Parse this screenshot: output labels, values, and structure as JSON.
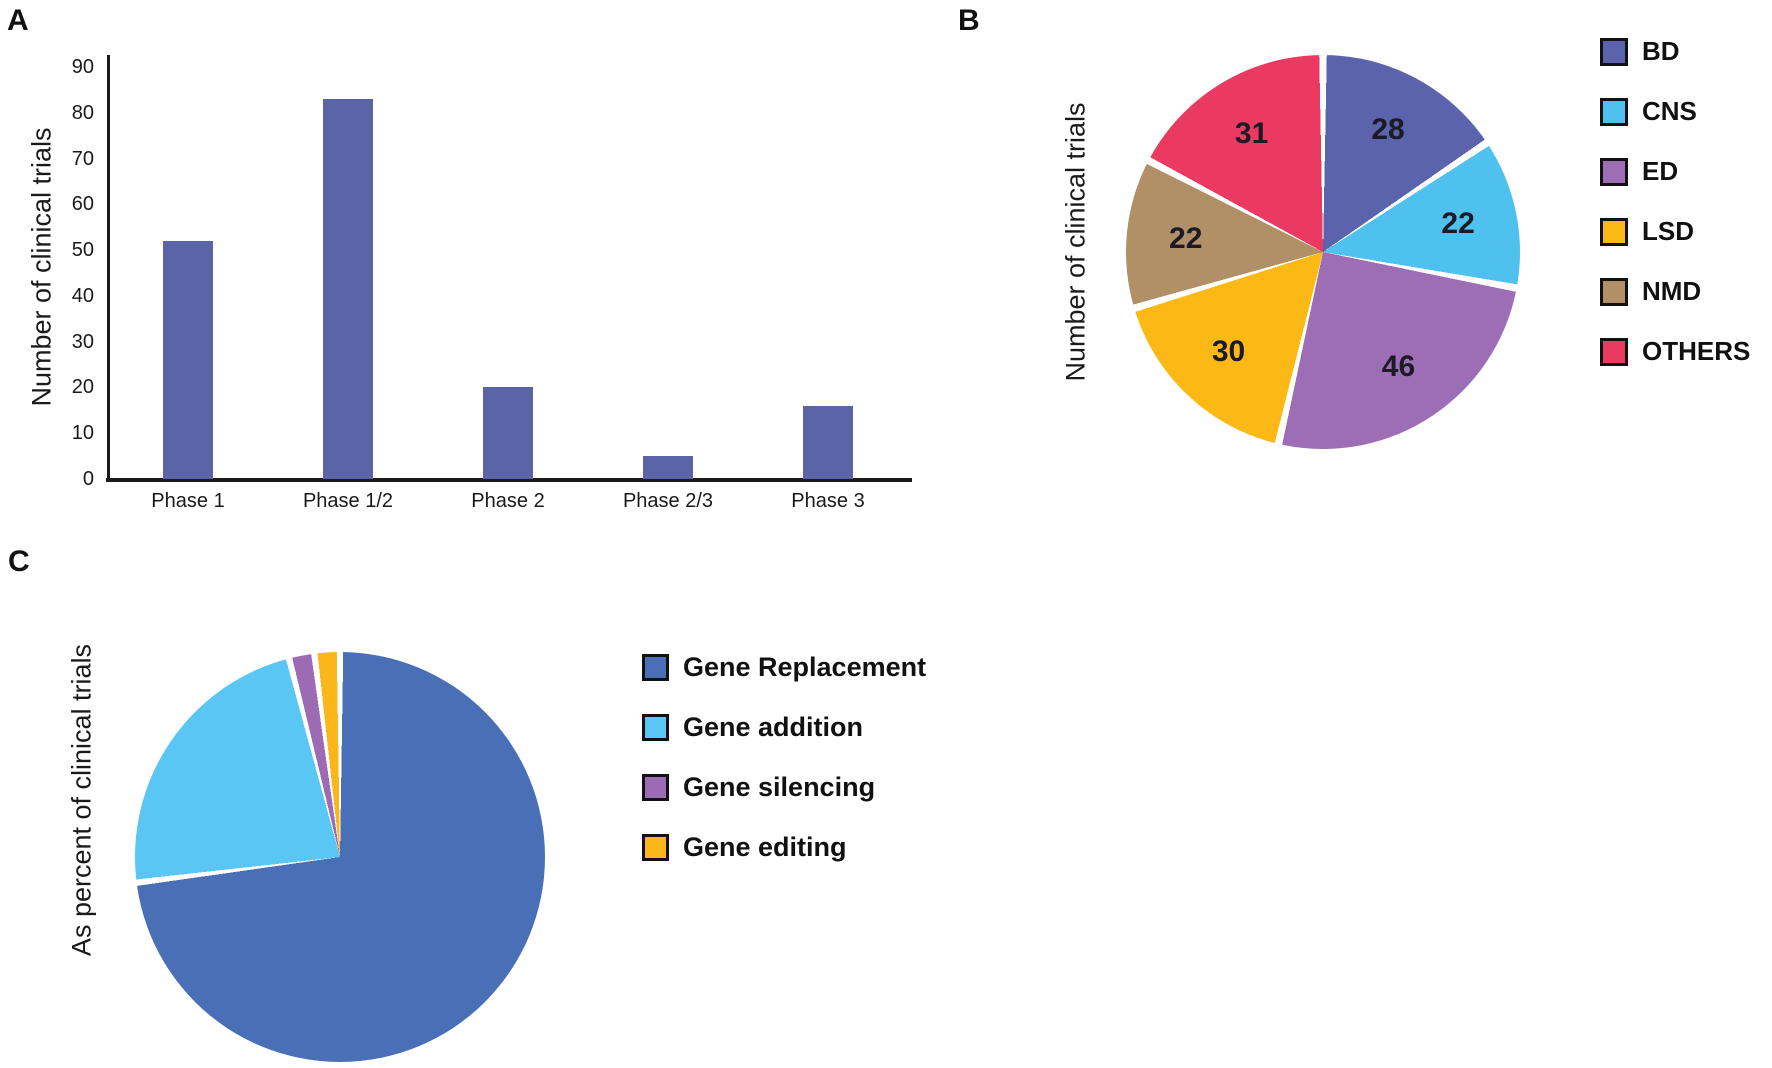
{
  "figure": {
    "background": "#ffffff",
    "text_color": "#1a1a1a"
  },
  "panels": {
    "a": {
      "letter": "A",
      "y_axis_title": "Number of clinical trials"
    },
    "b": {
      "letter": "B",
      "y_axis_title": "Number of clinical trials"
    },
    "c": {
      "letter": "C",
      "y_axis_title": "As percent of clinical trials"
    }
  },
  "chart_data": [
    {
      "panel": "A",
      "type": "bar",
      "title": "",
      "xlabel": "",
      "ylabel": "Number of clinical trials",
      "categories": [
        "Phase 1",
        "Phase 1/2",
        "Phase 2",
        "Phase 2/3",
        "Phase 3"
      ],
      "values": [
        52,
        83,
        20,
        5,
        16
      ],
      "ylim": [
        0,
        90
      ],
      "ytick_step": 10,
      "grid": false,
      "bar_color": "#5c64a8",
      "axis_color": "#1a1a1a"
    },
    {
      "panel": "B",
      "type": "pie",
      "title": "",
      "ylabel": "Number of clinical trials",
      "labels": [
        "BD",
        "CNS",
        "ED",
        "LSD",
        "NMD",
        "OTHERS"
      ],
      "values": [
        28,
        22,
        46,
        30,
        22,
        31
      ],
      "colors": [
        "#5a63ab",
        "#4ec1ee",
        "#9d6eb6",
        "#fcb814",
        "#b19068",
        "#ea3a62"
      ],
      "legend_position": "right",
      "start_angle_deg": 0,
      "slice_value_labels": true,
      "value_label_color": "#1b1b26",
      "separator_color": "#ffffff"
    },
    {
      "panel": "C",
      "type": "pie",
      "title": "",
      "ylabel": "As percent of clinical trials",
      "labels": [
        "Gene Replacement",
        "Gene addition",
        "Gene silencing",
        "Gene editing"
      ],
      "values": [
        73,
        23,
        2,
        2
      ],
      "unit": "percent",
      "colors": [
        "#4970b6",
        "#5ac6f3",
        "#9c6bb3",
        "#fbb61a"
      ],
      "legend_position": "right",
      "start_angle_deg": 0,
      "slice_value_labels": false,
      "separator_color": "#ffffff"
    }
  ]
}
